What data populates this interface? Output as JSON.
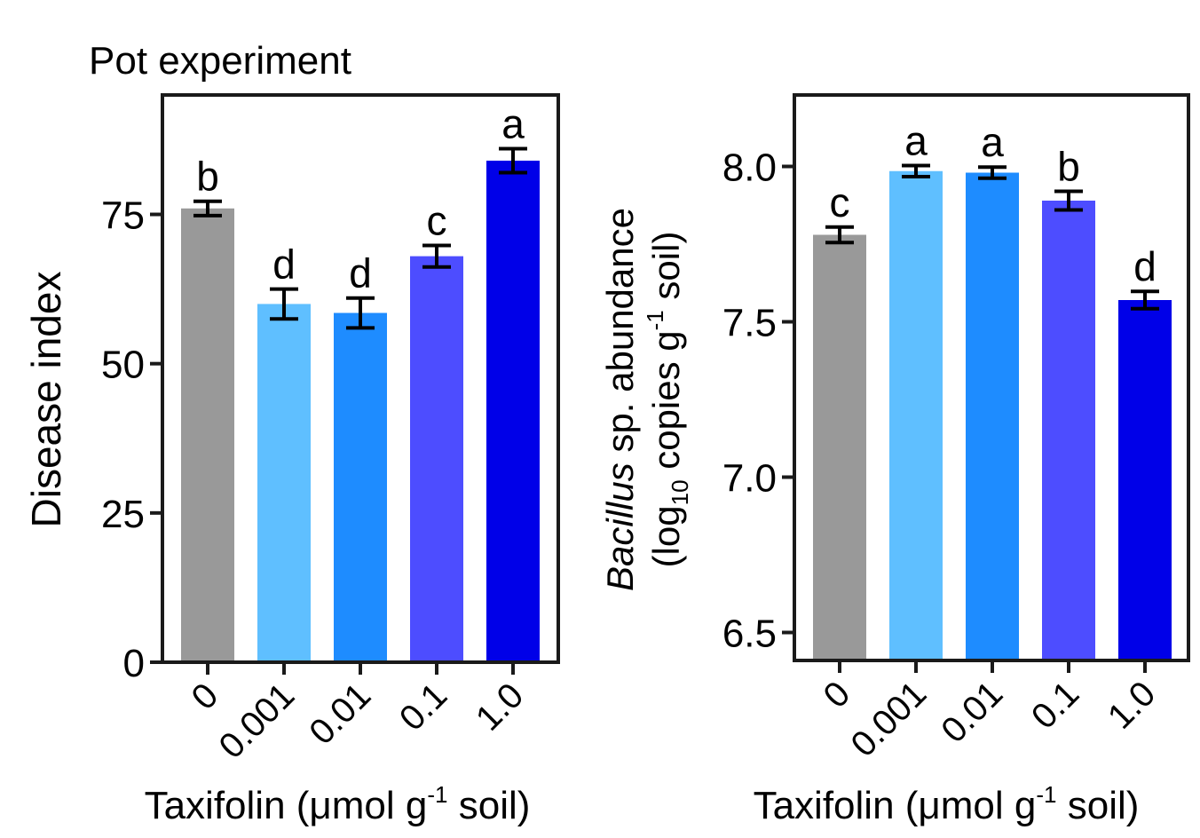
{
  "chart_data": [
    {
      "type": "bar",
      "title": "Pot experiment",
      "categories": [
        "0",
        "0.001",
        "0.01",
        "0.1",
        "1.0"
      ],
      "values": [
        76,
        60,
        58.5,
        68,
        84
      ],
      "errors": [
        1.2,
        2.5,
        2.5,
        1.8,
        2.0
      ],
      "letters": [
        "b",
        "d",
        "d",
        "c",
        "a"
      ],
      "colors": [
        "#999999",
        "#5fbfff",
        "#1e8cff",
        "#4d4dff",
        "#0000e8"
      ],
      "ylabel": "Disease index",
      "xlabel": {
        "main": "Taxifolin (μmol g",
        "sup": "-1",
        "end": " soil)"
      },
      "yticks": [
        "0",
        "25",
        "50",
        "75"
      ],
      "ylim": [
        0,
        95
      ],
      "grid": false,
      "legend": "none"
    },
    {
      "type": "bar",
      "title": "",
      "categories": [
        "0",
        "0.001",
        "0.01",
        "0.1",
        "1.0"
      ],
      "values": [
        7.78,
        7.985,
        7.98,
        7.89,
        7.57
      ],
      "errors": [
        0.025,
        0.018,
        0.018,
        0.03,
        0.028
      ],
      "letters": [
        "c",
        "a",
        "a",
        "b",
        "d"
      ],
      "colors": [
        "#999999",
        "#5fbfff",
        "#1e8cff",
        "#4d4dff",
        "#0000e8"
      ],
      "ylabel": {
        "line1_italic": "Bacillus",
        "line1_rest": " sp. abundance",
        "line2_a": "(log",
        "line2_sub": "10",
        "line2_b": " copies g",
        "line2_sup": "-1",
        "line2_c": " soil)"
      },
      "xlabel": {
        "main": "Taxifolin (μmol g",
        "sup": "-1",
        "end": " soil)"
      },
      "yticks": [
        "6.5",
        "7.0",
        "7.5",
        "8.0"
      ],
      "ylim": [
        6.41,
        8.23
      ],
      "grid": false,
      "legend": "none"
    }
  ]
}
